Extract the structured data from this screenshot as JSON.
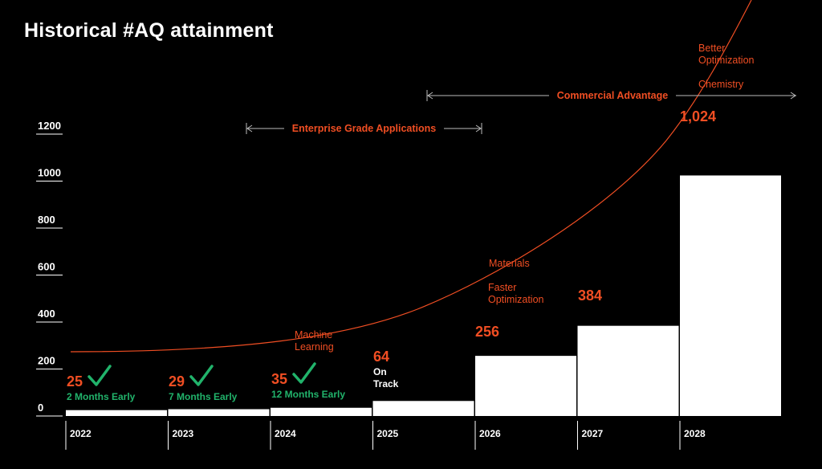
{
  "title": "Historical #AQ attainment",
  "colors": {
    "background": "#000000",
    "bar": "#ffffff",
    "accent": "#f04e23",
    "success": "#21b36b",
    "text": "#ffffff"
  },
  "chart_data": {
    "type": "bar",
    "title": "Historical #AQ attainment",
    "xlabel": "",
    "ylabel": "",
    "ylim": [
      0,
      1200
    ],
    "yticks": [
      0,
      200,
      400,
      600,
      800,
      1000,
      1200
    ],
    "categories": [
      "2022",
      "2023",
      "2024",
      "2025",
      "2026",
      "2027",
      "2028"
    ],
    "values": [
      25,
      29,
      35,
      64,
      256,
      384,
      1024
    ],
    "value_labels": [
      "25",
      "29",
      "35",
      "64",
      "256",
      "384",
      "1,024"
    ],
    "value_label_colors": [
      "#f04e23",
      "#f04e23",
      "#f04e23",
      "#f04e23",
      "#f04e23",
      "#f04e23",
      "#f04e23"
    ],
    "status_notes": [
      {
        "category": "2022",
        "text": "2 Months Early",
        "icon": "checkmark-icon",
        "color": "#21b36b"
      },
      {
        "category": "2023",
        "text": "7 Months Early",
        "icon": "checkmark-icon",
        "color": "#21b36b"
      },
      {
        "category": "2024",
        "text": "12 Months Early",
        "icon": "checkmark-icon",
        "color": "#21b36b"
      },
      {
        "category": "2025",
        "text": "On Track",
        "icon": "",
        "color": "#ffffff"
      }
    ],
    "ranges": [
      {
        "label": "Enterprise Grade Applications",
        "from": "2024",
        "to": "2026"
      },
      {
        "label": "Commercial Advantage",
        "from": "2025",
        "to": "2028+"
      }
    ],
    "trend_annotations": [
      {
        "text": "Machine Learning"
      },
      {
        "text": "Materials"
      },
      {
        "text": "Faster Optimization"
      },
      {
        "text": "Better Optimization"
      },
      {
        "text": "Chemistry"
      }
    ],
    "grid": false,
    "legend": "none"
  }
}
